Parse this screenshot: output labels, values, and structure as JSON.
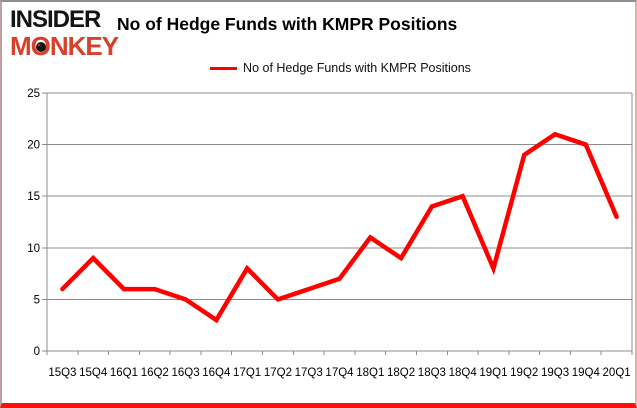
{
  "logo": {
    "line1": "INSIDER",
    "line2": "MONKEY"
  },
  "header": {
    "title": "No of Hedge Funds with KMPR Positions"
  },
  "legend": {
    "label": "No of Hedge Funds with KMPR Positions",
    "line_color": "#ff0000"
  },
  "chart_data": {
    "type": "line",
    "title": "No of Hedge Funds with KMPR Positions",
    "categories": [
      "15Q3",
      "15Q4",
      "16Q1",
      "16Q2",
      "16Q3",
      "16Q4",
      "17Q1",
      "17Q2",
      "17Q3",
      "17Q4",
      "18Q1",
      "18Q2",
      "18Q3",
      "18Q4",
      "19Q1",
      "19Q2",
      "19Q3",
      "19Q4",
      "20Q1"
    ],
    "series": [
      {
        "name": "No of Hedge Funds with KMPR Positions",
        "color": "#ff0000",
        "values": [
          6,
          9,
          6,
          6,
          5,
          3,
          8,
          5,
          6,
          7,
          11,
          9,
          14,
          15,
          8,
          19,
          21,
          20,
          13
        ]
      }
    ],
    "ylim": [
      0,
      25
    ],
    "yticks": [
      0,
      5,
      10,
      15,
      20,
      25
    ],
    "grid": true,
    "legend_position": "top",
    "axis_color": "#8c8c8c",
    "label_color": "#000000"
  }
}
